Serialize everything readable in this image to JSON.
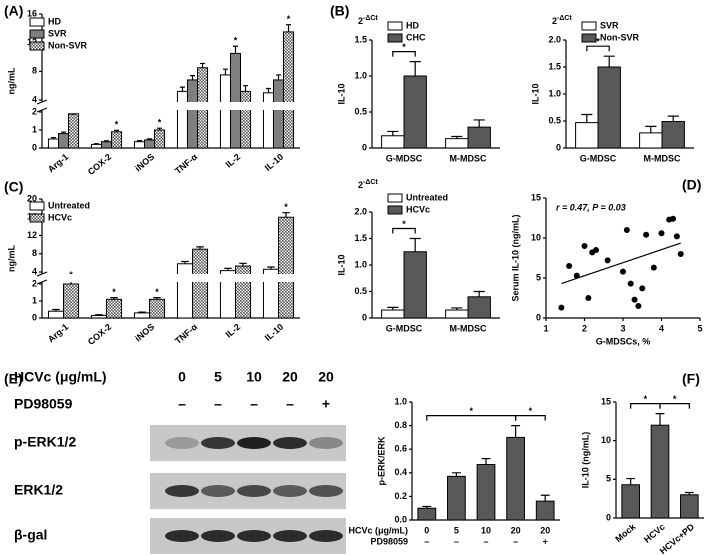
{
  "chart_data": [
    {
      "type": "bar",
      "panel": "(A)",
      "y_label": "ng/mL",
      "categories": [
        "Arg-1",
        "COX-2",
        "iNOS",
        "TNF-α",
        "IL-2",
        "IL-10"
      ],
      "series": [
        {
          "name": "HD",
          "color": "#ffffff",
          "values": [
            0.5,
            0.2,
            0.35,
            5.2,
            7.5,
            5.0
          ],
          "errors": [
            0.08,
            0.04,
            0.06,
            0.6,
            0.8,
            0.6
          ]
        },
        {
          "name": "SVR",
          "color": "#7f7f7f",
          "values": [
            0.8,
            0.35,
            0.45,
            6.8,
            10.5,
            6.8
          ],
          "errors": [
            0.08,
            0.05,
            0.06,
            0.6,
            1.0,
            0.7
          ],
          "stars": [
            null,
            null,
            null,
            null,
            "*",
            null
          ]
        },
        {
          "name": "Non-SVR",
          "color": "#555555",
          "hatch": true,
          "values": [
            1.9,
            0.9,
            1.0,
            8.5,
            5.2,
            13.5
          ],
          "errors": [
            0.12,
            0.08,
            0.1,
            0.6,
            0.8,
            1.0
          ],
          "stars": [
            "*",
            "*",
            "*",
            null,
            null,
            "*"
          ]
        }
      ],
      "ylim": [
        0,
        16
      ],
      "ybreak": [
        2,
        4
      ],
      "yticks": [
        0,
        1,
        2,
        4,
        8,
        12,
        16
      ]
    },
    {
      "type": "bar",
      "panel": "(B)",
      "scale_base": "2",
      "scale_exp": "-ΔCt",
      "y_label": "IL-10",
      "categories": [
        "G-MDSC",
        "M-MDSC"
      ],
      "series": [
        {
          "name": "HD",
          "color": "#ffffff",
          "values": [
            0.17,
            0.13
          ],
          "errors": [
            0.06,
            0.03
          ]
        },
        {
          "name": "CHC",
          "color": "#595959",
          "values": [
            1.0,
            0.29
          ],
          "errors": [
            0.2,
            0.1
          ]
        }
      ],
      "ylim": [
        0,
        1.5
      ],
      "yticks": [
        0,
        0.5,
        {
          "value": 1,
          "label": "1.0"
        },
        1.5
      ],
      "brackets": [
        {
          "category": 0,
          "label": "*"
        }
      ]
    },
    {
      "type": "bar",
      "scale_base": "2",
      "scale_exp": "-ΔCt",
      "y_label": "IL-10",
      "categories": [
        "G-MDSC",
        "M-MDSC"
      ],
      "series": [
        {
          "name": "SVR",
          "color": "#ffffff",
          "values": [
            0.47,
            0.28
          ],
          "errors": [
            0.15,
            0.12
          ]
        },
        {
          "name": "Non-SVR",
          "color": "#595959",
          "values": [
            1.5,
            0.49
          ],
          "errors": [
            0.2,
            0.1
          ]
        }
      ],
      "ylim": [
        0,
        2
      ],
      "yticks": [
        0,
        0.5,
        {
          "value": 1,
          "label": "1.0"
        },
        1.5,
        {
          "value": 2,
          "label": "2.0"
        }
      ],
      "brackets": [
        {
          "category": 0,
          "label": "*"
        }
      ]
    },
    {
      "type": "bar",
      "panel": "(C)",
      "y_label": "ng/mL",
      "categories": [
        "Arg-1",
        "COX-2",
        "iNOS",
        "TNF-α",
        "IL-2",
        "IL-10"
      ],
      "series": [
        {
          "name": "Untreated",
          "color": "#ffffff",
          "values": [
            0.4,
            0.15,
            0.3,
            5.8,
            4.3,
            4.6
          ],
          "errors": [
            0.1,
            0.04,
            0.05,
            0.5,
            0.5,
            0.5
          ]
        },
        {
          "name": "HCVc",
          "color": "#555555",
          "hatch": true,
          "values": [
            2.0,
            1.1,
            1.1,
            9.0,
            5.3,
            16.0
          ],
          "errors": [
            0.1,
            0.1,
            0.1,
            0.5,
            0.6,
            1.0
          ],
          "stars": [
            "*",
            "*",
            "*",
            null,
            null,
            "*"
          ]
        }
      ],
      "ylim": [
        0,
        20
      ],
      "ybreak": [
        2,
        4
      ],
      "yticks": [
        0,
        1,
        2,
        4,
        8,
        12,
        16,
        20
      ]
    },
    {
      "type": "bar",
      "scale_base": "2",
      "scale_exp": "-ΔCt",
      "y_label": "IL-10",
      "categories": [
        "G-MDSC",
        "M-MDSC"
      ],
      "series": [
        {
          "name": "Untreated",
          "color": "#ffffff",
          "values": [
            0.15,
            0.15
          ],
          "errors": [
            0.05,
            0.04
          ]
        },
        {
          "name": "HCVc",
          "color": "#595959",
          "values": [
            1.25,
            0.4
          ],
          "errors": [
            0.25,
            0.1
          ]
        }
      ],
      "ylim": [
        0,
        2
      ],
      "yticks": [
        0,
        0.5,
        {
          "value": 1,
          "label": "1.0"
        },
        1.5,
        {
          "value": 2,
          "label": "2.0"
        }
      ],
      "brackets": [
        {
          "category": 0,
          "label": "*"
        }
      ]
    },
    {
      "type": "scatter",
      "panel": "(D)",
      "x_label": "G-MDSCs, %",
      "y_label": "Serum IL-10 (ng/mL)",
      "annotation": "r = 0.47, P = 0.03",
      "color": "#000000",
      "trendline": true,
      "x": [
        1.4,
        1.6,
        1.8,
        2.0,
        2.1,
        2.2,
        2.3,
        2.6,
        3.0,
        3.1,
        3.2,
        3.3,
        3.4,
        3.5,
        3.6,
        3.8,
        4.0,
        4.2,
        4.3,
        4.4,
        4.5
      ],
      "y": [
        1.3,
        6.5,
        5.3,
        9.0,
        2.5,
        8.2,
        8.5,
        7.2,
        5.8,
        11.0,
        4.3,
        2.3,
        1.5,
        3.7,
        10.4,
        6.3,
        10.6,
        12.3,
        12.4,
        10.2,
        8.0
      ],
      "xlim": [
        1,
        5
      ],
      "xticks": [
        1,
        2,
        3,
        4,
        5
      ],
      "ylim": [
        0,
        15
      ],
      "yticks": [
        0,
        5,
        10,
        15
      ]
    },
    {
      "type": "bar",
      "y_label": "p-ERK/ERK",
      "category_titles": [
        "HCVc (μg/mL)",
        "PD98059"
      ],
      "categories": [
        "0",
        "5",
        "10",
        "20",
        "20"
      ],
      "categories2": [
        "–",
        "–",
        "–",
        "–",
        "+"
      ],
      "series": [
        {
          "color": "#595959",
          "values": [
            0.1,
            0.37,
            0.47,
            0.7,
            0.16
          ],
          "errors": [
            0.015,
            0.03,
            0.05,
            0.1,
            0.05
          ]
        }
      ],
      "ylim": [
        0,
        1
      ],
      "yticks": [
        {
          "value": 0,
          "label": "0.0"
        },
        0.2,
        0.4,
        0.6,
        0.8,
        {
          "value": 1,
          "label": "1.0"
        }
      ],
      "brackets": [
        {
          "from": 0,
          "to": 3,
          "label": "*"
        },
        {
          "from": 3,
          "to": 4,
          "label": "*"
        }
      ]
    },
    {
      "type": "bar",
      "panel": "(F)",
      "y_label": "IL-10 (ng/mL)",
      "categories": [
        "Mock",
        "HCVc",
        "HCVc+PD"
      ],
      "series": [
        {
          "color": "#595959",
          "values": [
            4.3,
            12.0,
            3.0
          ],
          "errors": [
            0.8,
            1.5,
            0.3
          ]
        }
      ],
      "ylim": [
        0,
        15
      ],
      "yticks": [
        0,
        5,
        10,
        15
      ],
      "brackets": [
        {
          "from": 0,
          "to": 1,
          "label": "*"
        },
        {
          "from": 1,
          "to": 2,
          "label": "*"
        }
      ]
    }
  ],
  "blot": {
    "panel": "(E)",
    "title": "HCVc (μg/mL)",
    "lanes": [
      "0",
      "5",
      "10",
      "20",
      "20"
    ],
    "treatment": "PD98059",
    "treatment_lanes": [
      "–",
      "–",
      "–",
      "–",
      "+"
    ],
    "rows": [
      "p-ERK1/2",
      "ERK1/2",
      "β-gal"
    ]
  }
}
